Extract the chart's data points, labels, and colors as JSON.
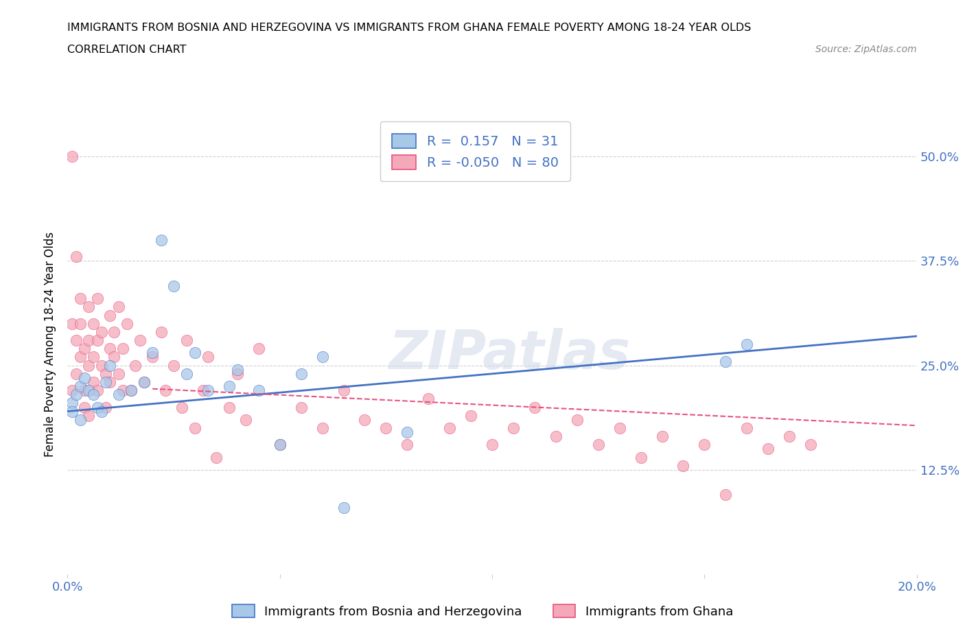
{
  "title_line1": "IMMIGRANTS FROM BOSNIA AND HERZEGOVINA VS IMMIGRANTS FROM GHANA FEMALE POVERTY AMONG 18-24 YEAR OLDS",
  "title_line2": "CORRELATION CHART",
  "source": "Source: ZipAtlas.com",
  "ylabel": "Female Poverty Among 18-24 Year Olds",
  "xlim": [
    0.0,
    0.2
  ],
  "ylim": [
    0.0,
    0.55
  ],
  "xtick_positions": [
    0.0,
    0.05,
    0.1,
    0.15,
    0.2
  ],
  "xticklabels": [
    "0.0%",
    "",
    "",
    "",
    "20.0%"
  ],
  "ytick_positions": [
    0.125,
    0.25,
    0.375,
    0.5
  ],
  "ytick_labels": [
    "12.5%",
    "25.0%",
    "37.5%",
    "50.0%"
  ],
  "bosnia_color": "#a8c8e8",
  "ghana_color": "#f4a8b8",
  "bosnia_line_color": "#4472c4",
  "ghana_line_color": "#e85080",
  "R_bosnia": 0.157,
  "N_bosnia": 31,
  "R_ghana": -0.05,
  "N_ghana": 80,
  "legend_label_bosnia": "Immigrants from Bosnia and Herzegovina",
  "legend_label_ghana": "Immigrants from Ghana",
  "watermark": "ZIPatlas",
  "bosnia_x": [
    0.001,
    0.001,
    0.002,
    0.003,
    0.003,
    0.004,
    0.005,
    0.006,
    0.007,
    0.008,
    0.009,
    0.01,
    0.012,
    0.015,
    0.018,
    0.02,
    0.022,
    0.025,
    0.028,
    0.03,
    0.033,
    0.038,
    0.04,
    0.045,
    0.05,
    0.055,
    0.06,
    0.065,
    0.08,
    0.155,
    0.16
  ],
  "bosnia_y": [
    0.205,
    0.195,
    0.215,
    0.225,
    0.185,
    0.235,
    0.22,
    0.215,
    0.2,
    0.195,
    0.23,
    0.25,
    0.215,
    0.22,
    0.23,
    0.265,
    0.4,
    0.345,
    0.24,
    0.265,
    0.22,
    0.225,
    0.245,
    0.22,
    0.155,
    0.24,
    0.26,
    0.08,
    0.17,
    0.255,
    0.275
  ],
  "ghana_x": [
    0.001,
    0.001,
    0.001,
    0.002,
    0.002,
    0.002,
    0.003,
    0.003,
    0.003,
    0.004,
    0.004,
    0.004,
    0.005,
    0.005,
    0.005,
    0.005,
    0.006,
    0.006,
    0.006,
    0.007,
    0.007,
    0.007,
    0.008,
    0.008,
    0.009,
    0.009,
    0.01,
    0.01,
    0.01,
    0.011,
    0.011,
    0.012,
    0.012,
    0.013,
    0.013,
    0.014,
    0.015,
    0.016,
    0.017,
    0.018,
    0.02,
    0.022,
    0.023,
    0.025,
    0.027,
    0.028,
    0.03,
    0.032,
    0.033,
    0.035,
    0.038,
    0.04,
    0.042,
    0.045,
    0.05,
    0.055,
    0.06,
    0.065,
    0.07,
    0.075,
    0.08,
    0.085,
    0.09,
    0.095,
    0.1,
    0.105,
    0.11,
    0.115,
    0.12,
    0.125,
    0.13,
    0.135,
    0.14,
    0.145,
    0.15,
    0.155,
    0.16,
    0.165,
    0.17,
    0.175
  ],
  "ghana_y": [
    0.5,
    0.3,
    0.22,
    0.28,
    0.24,
    0.38,
    0.26,
    0.3,
    0.33,
    0.22,
    0.27,
    0.2,
    0.25,
    0.28,
    0.32,
    0.19,
    0.26,
    0.3,
    0.23,
    0.28,
    0.22,
    0.33,
    0.25,
    0.29,
    0.24,
    0.2,
    0.27,
    0.31,
    0.23,
    0.26,
    0.29,
    0.24,
    0.32,
    0.27,
    0.22,
    0.3,
    0.22,
    0.25,
    0.28,
    0.23,
    0.26,
    0.29,
    0.22,
    0.25,
    0.2,
    0.28,
    0.175,
    0.22,
    0.26,
    0.14,
    0.2,
    0.24,
    0.185,
    0.27,
    0.155,
    0.2,
    0.175,
    0.22,
    0.185,
    0.175,
    0.155,
    0.21,
    0.175,
    0.19,
    0.155,
    0.175,
    0.2,
    0.165,
    0.185,
    0.155,
    0.175,
    0.14,
    0.165,
    0.13,
    0.155,
    0.095,
    0.175,
    0.15,
    0.165,
    0.155
  ],
  "bosnia_line_x": [
    0.0,
    0.2
  ],
  "bosnia_line_y": [
    0.195,
    0.285
  ],
  "ghana_line_x": [
    0.02,
    0.2
  ],
  "ghana_line_y": [
    0.222,
    0.178
  ]
}
